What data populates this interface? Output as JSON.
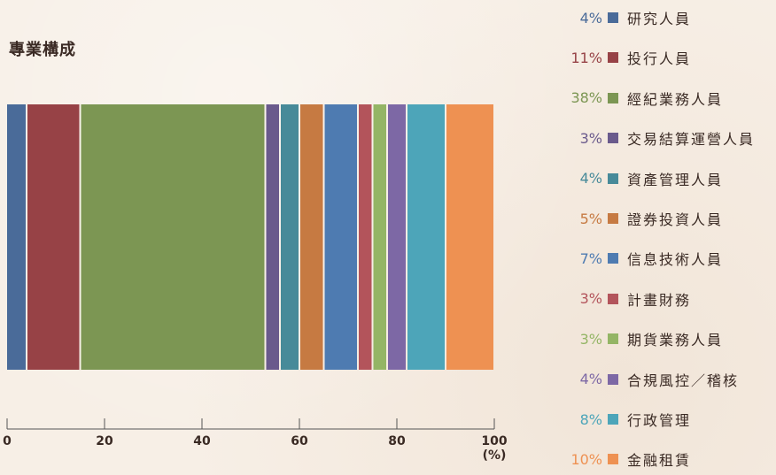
{
  "chart_data": {
    "type": "bar",
    "orientation": "horizontal",
    "stacked": true,
    "title": "專業構成",
    "xlabel": "(%)",
    "xlim": [
      0,
      100
    ],
    "xticks": [
      "0",
      "20",
      "40",
      "60",
      "80",
      "100"
    ],
    "grid": false,
    "legend_position": "right",
    "categories": [
      "專業構成"
    ],
    "series": [
      {
        "name": "研究人員",
        "value": 4,
        "value_label": "4%",
        "color": "#4a6b99"
      },
      {
        "name": "投行人員",
        "value": 11,
        "value_label": "11%",
        "color": "#974246"
      },
      {
        "name": "經紀業務人員",
        "value": 38,
        "value_label": "38%",
        "color": "#7c9653"
      },
      {
        "name": "交易結算運營人員",
        "value": 3,
        "value_label": "3%",
        "color": "#6a5a8c"
      },
      {
        "name": "資產管理人員",
        "value": 4,
        "value_label": "4%",
        "color": "#478a99"
      },
      {
        "name": "證券投資人員",
        "value": 5,
        "value_label": "5%",
        "color": "#c67a42"
      },
      {
        "name": "信息技術人員",
        "value": 7,
        "value_label": "7%",
        "color": "#4e7bb1"
      },
      {
        "name": "計畫財務",
        "value": 3,
        "value_label": "3%",
        "color": "#b3545b"
      },
      {
        "name": "期貨業務人員",
        "value": 3,
        "value_label": "3%",
        "color": "#94b565"
      },
      {
        "name": "合規風控／稽核",
        "value": 4,
        "value_label": "4%",
        "color": "#7d68a5"
      },
      {
        "name": "行政管理",
        "value": 8,
        "value_label": "8%",
        "color": "#4da5b9"
      },
      {
        "name": "金融租賃",
        "value": 10,
        "value_label": "10%",
        "color": "#ee9152"
      }
    ]
  },
  "colors": {
    "axis": "#555555",
    "text": "#3a2a24"
  }
}
